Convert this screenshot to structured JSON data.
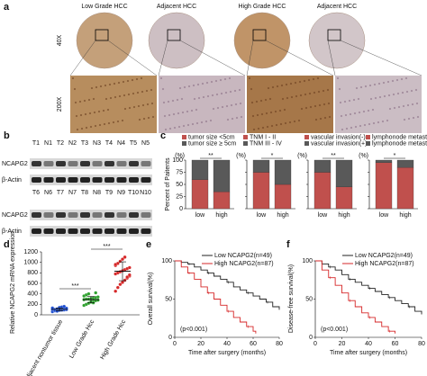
{
  "panel_a": {
    "label": "a",
    "columns": [
      "Low Grade HCC",
      "Adjacent HCC",
      "High Grade HCC",
      "Adjacent HCC"
    ],
    "rows": [
      "40X",
      "200X"
    ]
  },
  "panel_b": {
    "label": "b",
    "blots": [
      {
        "lanes": [
          "T1",
          "N1",
          "T2",
          "N2",
          "T3",
          "N3",
          "T4",
          "N4",
          "T5",
          "N5"
        ],
        "rows": [
          "NCAPG2",
          "β-Actin"
        ]
      },
      {
        "lanes": [
          "T6",
          "N6",
          "T7",
          "N7",
          "T8",
          "N8",
          "T9",
          "N9",
          "T10",
          "N10"
        ],
        "rows": [
          "NCAPG2",
          "β-Actin"
        ]
      }
    ]
  },
  "chart_data": [
    {
      "type": "stacked_bar",
      "label": "c",
      "ylabel": "Percent of Paitents",
      "yunit": "(%)",
      "ylim": [
        0,
        100
      ],
      "yticks": [
        0,
        25,
        50,
        75,
        100
      ],
      "groups": [
        {
          "categories": [
            "low",
            "high"
          ],
          "significance": "**",
          "series": [
            {
              "name": "tumor size <5cm",
              "color": "#c0504d",
              "values": [
                60,
                35
              ]
            },
            {
              "name": "tumor size ≥ 5cm",
              "color": "#595959",
              "values": [
                40,
                65
              ]
            }
          ]
        },
        {
          "categories": [
            "low",
            "high"
          ],
          "significance": "*",
          "series": [
            {
              "name": "TNM I - II",
              "color": "#c0504d",
              "values": [
                75,
                50
              ]
            },
            {
              "name": "TNM III - IV",
              "color": "#595959",
              "values": [
                25,
                50
              ]
            }
          ]
        },
        {
          "categories": [
            "low",
            "high"
          ],
          "significance": "**",
          "series": [
            {
              "name": "vascular invasion(-)",
              "color": "#c0504d",
              "values": [
                75,
                45
              ]
            },
            {
              "name": "vascular invasion(+)",
              "color": "#595959",
              "values": [
                25,
                55
              ]
            }
          ]
        },
        {
          "categories": [
            "low",
            "high"
          ],
          "significance": "*",
          "series": [
            {
              "name": "lymphonode metastasis (-)",
              "color": "#c0504d",
              "values": [
                95,
                85
              ]
            },
            {
              "name": "lymphonode metastasis (+)",
              "color": "#595959",
              "values": [
                5,
                15
              ]
            }
          ]
        }
      ]
    },
    {
      "type": "dot",
      "label": "d",
      "ylabel": "Relative NCAPG2 mRNA expression",
      "ylim": [
        0,
        1200
      ],
      "yticks": [
        0,
        200,
        400,
        600,
        800,
        1000,
        1200
      ],
      "categories": [
        "Adjacent nontumor tissue",
        "Low Grade Hcc",
        "High Grade Hcc"
      ],
      "colors": [
        "#1f4fd1",
        "#2ca02c",
        "#d62728"
      ],
      "values": [
        [
          60,
          75,
          80,
          85,
          90,
          95,
          100,
          100,
          105,
          110,
          110,
          115,
          120,
          125,
          130,
          90,
          70,
          140,
          150,
          160
        ],
        [
          180,
          200,
          220,
          240,
          260,
          270,
          280,
          290,
          300,
          300,
          310,
          320,
          330,
          340,
          360,
          380,
          400,
          250,
          230,
          420
        ],
        [
          450,
          520,
          580,
          620,
          660,
          700,
          740,
          780,
          800,
          820,
          840,
          860,
          880,
          900,
          940,
          980,
          1020,
          1060,
          1100,
          720,
          760,
          960
        ]
      ],
      "means": [
        105,
        290,
        830
      ],
      "sds": [
        25,
        60,
        180
      ],
      "significance": [
        "***",
        "***"
      ]
    },
    {
      "type": "km",
      "label": "e",
      "ylabel": "Overall survival(%)",
      "xlabel": "Time after surgery (months)",
      "annotation": "(p<0.001)",
      "xlim": [
        0,
        80
      ],
      "xticks": [
        0,
        20,
        40,
        60,
        80
      ],
      "ylim": [
        0,
        100
      ],
      "yticks": [
        0,
        50,
        100
      ],
      "series": [
        {
          "name": "Low NCAPG2(n=49)",
          "color": "#222222",
          "x": [
            0,
            5,
            10,
            15,
            20,
            25,
            30,
            35,
            40,
            45,
            50,
            55,
            60,
            65,
            70,
            75,
            80
          ],
          "values": [
            100,
            98,
            96,
            92,
            88,
            84,
            80,
            76,
            72,
            66,
            62,
            58,
            54,
            50,
            46,
            40,
            36
          ]
        },
        {
          "name": "High NCAPG2(n=87)",
          "color": "#d62728",
          "x": [
            0,
            5,
            10,
            15,
            20,
            25,
            30,
            35,
            40,
            45,
            50,
            55,
            60,
            62
          ],
          "values": [
            100,
            92,
            84,
            76,
            66,
            58,
            50,
            42,
            34,
            26,
            20,
            14,
            8,
            5
          ]
        }
      ]
    },
    {
      "type": "km",
      "label": "f",
      "ylabel": "Disease-free survival(%)",
      "xlabel": "Time after surgery (months)",
      "annotation": "(p<0.001)",
      "xlim": [
        0,
        80
      ],
      "xticks": [
        0,
        20,
        40,
        60,
        80
      ],
      "ylim": [
        0,
        100
      ],
      "yticks": [
        0,
        50,
        100
      ],
      "series": [
        {
          "name": "Low NCAPG2(n=49)",
          "color": "#222222",
          "x": [
            0,
            5,
            10,
            15,
            20,
            25,
            30,
            35,
            40,
            45,
            50,
            55,
            60,
            65,
            70,
            75,
            80
          ],
          "values": [
            100,
            96,
            92,
            88,
            82,
            76,
            72,
            68,
            64,
            60,
            56,
            52,
            48,
            44,
            40,
            34,
            30
          ]
        },
        {
          "name": "High NCAPG2(n=87)",
          "color": "#d62728",
          "x": [
            0,
            5,
            10,
            15,
            20,
            25,
            30,
            35,
            40,
            45,
            50,
            55,
            60
          ],
          "values": [
            100,
            88,
            78,
            68,
            58,
            48,
            40,
            32,
            26,
            20,
            14,
            8,
            5
          ]
        }
      ]
    }
  ]
}
